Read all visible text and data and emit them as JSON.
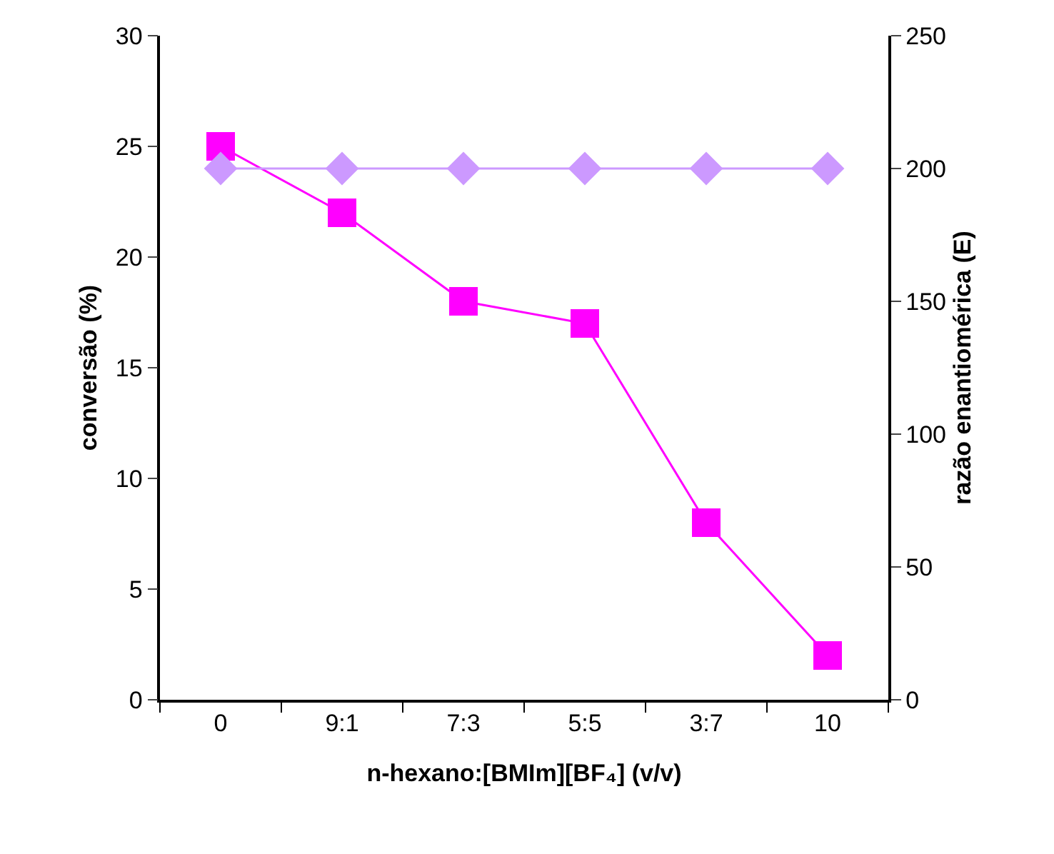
{
  "chart_data": {
    "type": "line",
    "xlabel": "n-hexano:[BMIm][BF₄] (v/v)",
    "ylabel": "conversão (%)",
    "y2label": "razão enantiomérica (E)",
    "categories": [
      "0",
      "9:1",
      "7:3",
      "5:5",
      "3:7",
      "10"
    ],
    "series": [
      {
        "color": "#ff00ff",
        "marker": "square",
        "values": [
          25,
          22,
          18,
          17,
          8,
          2
        ]
      },
      {
        "color": "#cc99ff",
        "marker": "diamond",
        "axis": "y2",
        "values": [
          200,
          200,
          200,
          200,
          200,
          200
        ]
      }
    ],
    "ylim": [
      0,
      30
    ],
    "yticks": [
      0,
      5,
      10,
      15,
      20,
      25,
      30
    ],
    "y2lim": [
      0,
      250
    ],
    "y2ticks": [
      0,
      50,
      100,
      150,
      200,
      250
    ],
    "grid": false,
    "line_style": "solid"
  }
}
